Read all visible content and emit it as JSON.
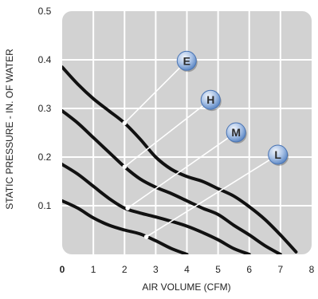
{
  "chart_data": {
    "type": "line",
    "xlabel": "AIR VOLUME (CFM)",
    "ylabel": "STATIC PRESSURE - IN. OF WATER",
    "xlim": [
      0,
      8
    ],
    "ylim": [
      0,
      0.5
    ],
    "x_ticks": [
      "0",
      "1",
      "2",
      "3",
      "4",
      "5",
      "6",
      "7",
      "8"
    ],
    "y_ticks": [
      "0.5",
      "0.4",
      "0.3",
      "0.2",
      "0.1"
    ],
    "grid": true,
    "background_color": "#d2d2d2",
    "line_color": "#111111",
    "badge_color": "#6f9ad3",
    "series": [
      {
        "name": "E",
        "x": [
          0,
          0.5,
          1.0,
          1.5,
          2.0,
          2.5,
          3.0,
          3.5,
          4.0,
          4.5,
          5.0,
          5.5,
          6.0,
          6.5,
          7.0,
          7.5
        ],
        "y": [
          0.385,
          0.35,
          0.32,
          0.295,
          0.27,
          0.237,
          0.2,
          0.175,
          0.16,
          0.15,
          0.135,
          0.12,
          0.098,
          0.072,
          0.04,
          0.005
        ]
      },
      {
        "name": "H",
        "x": [
          0,
          0.5,
          1.0,
          1.5,
          2.0,
          2.5,
          3.0,
          3.5,
          4.0,
          4.5,
          5.0,
          5.5,
          6.0,
          6.5,
          7.0
        ],
        "y": [
          0.295,
          0.27,
          0.24,
          0.21,
          0.18,
          0.155,
          0.138,
          0.125,
          0.11,
          0.095,
          0.082,
          0.06,
          0.04,
          0.018,
          0.0
        ]
      },
      {
        "name": "M",
        "x": [
          0,
          0.5,
          1.0,
          1.5,
          2.0,
          2.5,
          3.0,
          3.5,
          4.0,
          4.5,
          5.0,
          5.5,
          6.0
        ],
        "y": [
          0.185,
          0.165,
          0.14,
          0.115,
          0.095,
          0.085,
          0.077,
          0.068,
          0.058,
          0.045,
          0.03,
          0.012,
          0.0
        ]
      },
      {
        "name": "L",
        "x": [
          0,
          0.5,
          1.0,
          1.5,
          2.0,
          2.5,
          3.0,
          3.5,
          4.0
        ],
        "y": [
          0.11,
          0.095,
          0.075,
          0.06,
          0.05,
          0.042,
          0.028,
          0.012,
          0.0
        ]
      }
    ],
    "callouts": [
      {
        "label": "E",
        "point": [
          2.0,
          0.27
        ]
      },
      {
        "label": "H",
        "point": [
          2.0,
          0.18
        ]
      },
      {
        "label": "M",
        "point": [
          2.1,
          0.095
        ]
      },
      {
        "label": "L",
        "point": [
          2.7,
          0.036
        ]
      }
    ]
  }
}
